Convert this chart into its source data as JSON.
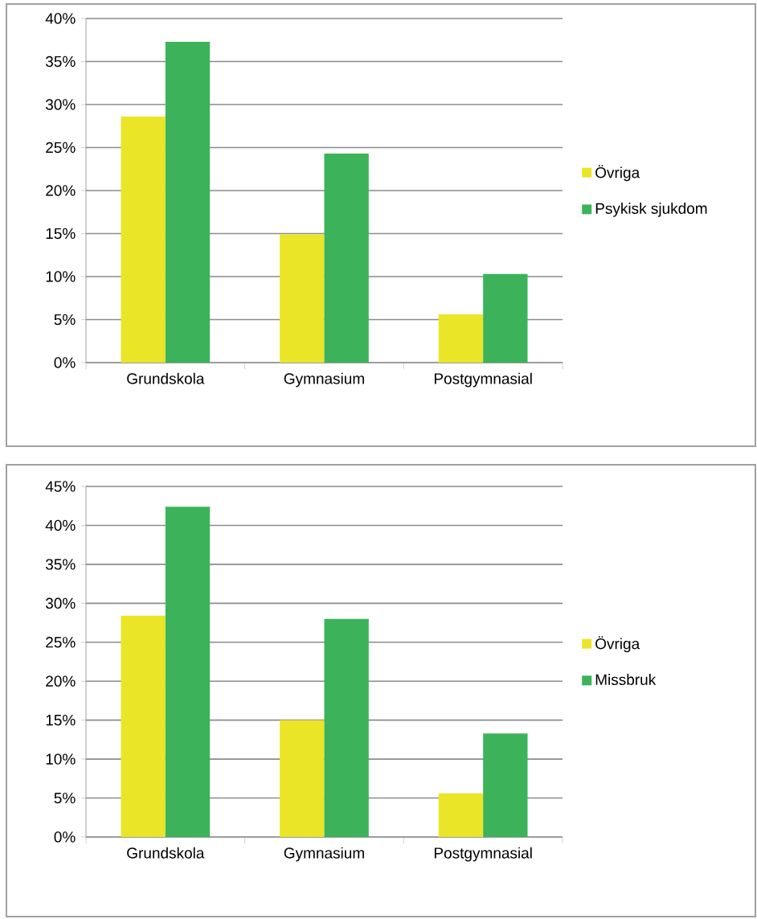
{
  "chart_data": [
    {
      "type": "bar",
      "categories": [
        "Grundskola",
        "Gymnasium",
        "Postgymnasial"
      ],
      "series": [
        {
          "name": "Övriga",
          "color": "#ebe527",
          "values": [
            28.6,
            14.9,
            5.6
          ]
        },
        {
          "name": "Psykisk sjukdom",
          "color": "#3cb35a",
          "values": [
            37.3,
            24.3,
            10.3
          ]
        }
      ],
      "ylim": [
        0,
        40
      ],
      "yticks": [
        {
          "value": 0,
          "label": "0%"
        },
        {
          "value": 5,
          "label": "5%"
        },
        {
          "value": 10,
          "label": "10%"
        },
        {
          "value": 15,
          "label": "15%"
        },
        {
          "value": 20,
          "label": "20%"
        },
        {
          "value": 25,
          "label": "25%"
        },
        {
          "value": 30,
          "label": "30%"
        },
        {
          "value": 35,
          "label": "35%"
        },
        {
          "value": 40,
          "label": "40%"
        }
      ],
      "grid": "y",
      "legend": "right"
    },
    {
      "type": "bar",
      "categories": [
        "Grundskola",
        "Gymnasium",
        "Postgymnasial"
      ],
      "series": [
        {
          "name": "Övriga",
          "color": "#ebe527",
          "values": [
            28.4,
            15.0,
            5.6
          ]
        },
        {
          "name": "Missbruk",
          "color": "#3cb35a",
          "values": [
            42.4,
            28.0,
            13.3
          ]
        }
      ],
      "ylim": [
        0,
        45
      ],
      "yticks": [
        {
          "value": 0,
          "label": "0%"
        },
        {
          "value": 5,
          "label": "5%"
        },
        {
          "value": 10,
          "label": "10%"
        },
        {
          "value": 15,
          "label": "15%"
        },
        {
          "value": 20,
          "label": "20%"
        },
        {
          "value": 25,
          "label": "25%"
        },
        {
          "value": 30,
          "label": "30%"
        },
        {
          "value": 35,
          "label": "35%"
        },
        {
          "value": 40,
          "label": "40%"
        },
        {
          "value": 45,
          "label": "45%"
        }
      ],
      "grid": "y",
      "legend": "right"
    }
  ]
}
